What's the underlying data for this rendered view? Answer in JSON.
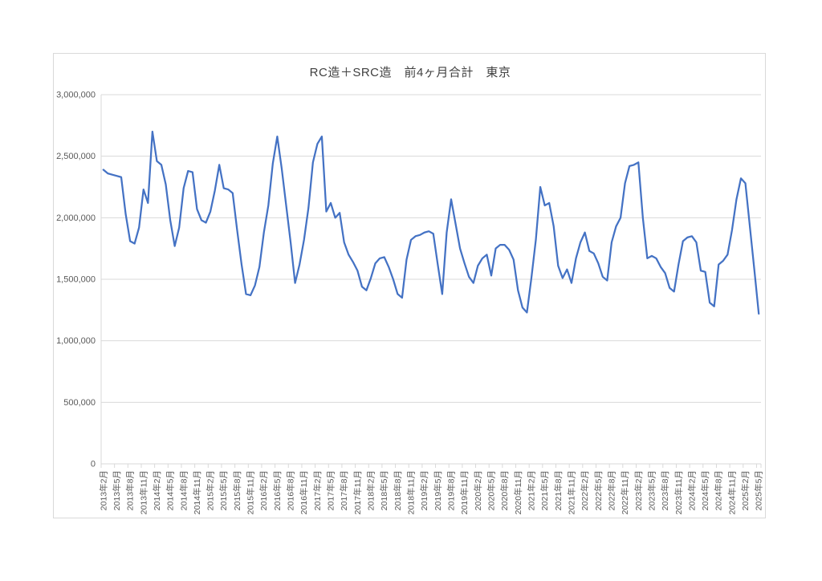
{
  "chart_data": {
    "type": "line",
    "title": "RC造＋SRC造　前4ヶ月合計　東京",
    "ylim": [
      0,
      3000000
    ],
    "y_tick_interval": 500000,
    "y_tick_labels": [
      "0",
      "500,000",
      "1,000,000",
      "1,500,000",
      "2,000,000",
      "2,500,000",
      "3,000,000"
    ],
    "x_tick_every": 3,
    "x_tick_labels": [
      "2013年2月",
      "2013年5月",
      "2013年8月",
      "2013年11月",
      "2014年2月",
      "2014年5月",
      "2014年8月",
      "2014年11月",
      "2015年2月",
      "2015年5月",
      "2015年8月",
      "2015年11月",
      "2016年2月",
      "2016年5月",
      "2016年8月",
      "2016年11月",
      "2017年2月",
      "2017年5月",
      "2017年8月",
      "2017年11月",
      "2018年2月",
      "2018年5月",
      "2018年8月",
      "2018年11月",
      "2019年2月",
      "2019年5月",
      "2019年8月",
      "2019年11月",
      "2020年2月",
      "2020年5月",
      "2020年8月",
      "2020年11月",
      "2021年2月",
      "2021年5月",
      "2021年8月",
      "2021年11月",
      "2022年2月",
      "2022年5月",
      "2022年8月",
      "2022年11月",
      "2023年2月",
      "2023年5月",
      "2023年8月",
      "2023年11月",
      "2024年2月",
      "2024年5月",
      "2024年8月",
      "2024年11月",
      "2025年2月",
      "2025年5月"
    ],
    "grid": true,
    "legend": "none",
    "line_color": "#4472C4",
    "axis_color": "#D9D9D9",
    "label_color": "#595959",
    "series": [
      {
        "values": [
          2390000,
          2360000,
          2350000,
          2340000,
          2330000,
          2030000,
          1810000,
          1790000,
          1920000,
          2230000,
          2120000,
          2700000,
          2460000,
          2430000,
          2270000,
          1980000,
          1770000,
          1920000,
          2240000,
          2380000,
          2370000,
          2070000,
          1980000,
          1960000,
          2050000,
          2220000,
          2430000,
          2240000,
          2230000,
          2200000,
          1900000,
          1620000,
          1380000,
          1370000,
          1450000,
          1600000,
          1880000,
          2100000,
          2440000,
          2660000,
          2400000,
          2100000,
          1800000,
          1470000,
          1620000,
          1820000,
          2080000,
          2450000,
          2600000,
          2660000,
          2050000,
          2120000,
          2000000,
          2040000,
          1800000,
          1700000,
          1640000,
          1570000,
          1440000,
          1410000,
          1510000,
          1630000,
          1670000,
          1680000,
          1600000,
          1500000,
          1380000,
          1350000,
          1660000,
          1820000,
          1850000,
          1860000,
          1880000,
          1890000,
          1870000,
          1620000,
          1380000,
          1880000,
          2150000,
          1950000,
          1750000,
          1630000,
          1520000,
          1470000,
          1610000,
          1670000,
          1700000,
          1530000,
          1750000,
          1780000,
          1780000,
          1740000,
          1660000,
          1410000,
          1270000,
          1230000,
          1510000,
          1820000,
          2250000,
          2100000,
          2120000,
          1930000,
          1610000,
          1510000,
          1580000,
          1470000,
          1670000,
          1800000,
          1880000,
          1730000,
          1710000,
          1630000,
          1520000,
          1490000,
          1800000,
          1930000,
          2000000,
          2280000,
          2420000,
          2430000,
          2450000,
          2000000,
          1670000,
          1690000,
          1670000,
          1600000,
          1550000,
          1430000,
          1400000,
          1620000,
          1810000,
          1840000,
          1850000,
          1800000,
          1570000,
          1560000,
          1310000,
          1280000,
          1620000,
          1650000,
          1700000,
          1900000,
          2150000,
          2320000,
          2280000,
          1930000,
          1580000,
          1220000
        ]
      }
    ]
  }
}
